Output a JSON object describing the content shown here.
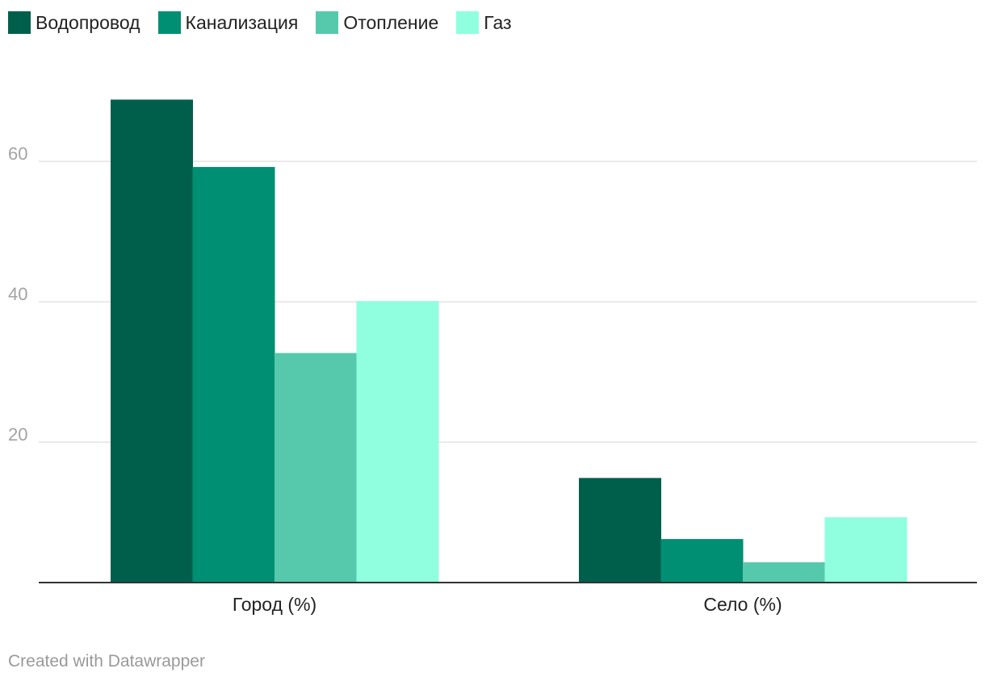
{
  "chart_data": {
    "type": "bar",
    "categories": [
      "Город (%)",
      "Село (%)"
    ],
    "series": [
      {
        "name": "Водопровод",
        "values": [
          68.8,
          14.9
        ],
        "color": "#005f4b"
      },
      {
        "name": "Канализация",
        "values": [
          59.2,
          6.2
        ],
        "color": "#008f72"
      },
      {
        "name": "Отопление",
        "values": [
          32.7,
          2.9
        ],
        "color": "#56c9ad"
      },
      {
        "name": "Газ",
        "values": [
          40.1,
          9.3
        ],
        "color": "#8fffdf"
      }
    ],
    "yticks": [
      20,
      40,
      60
    ],
    "ylim": [
      0,
      74
    ],
    "grid": true,
    "legend_position": "top-left"
  },
  "footer": {
    "credit": "Created with Datawrapper"
  }
}
